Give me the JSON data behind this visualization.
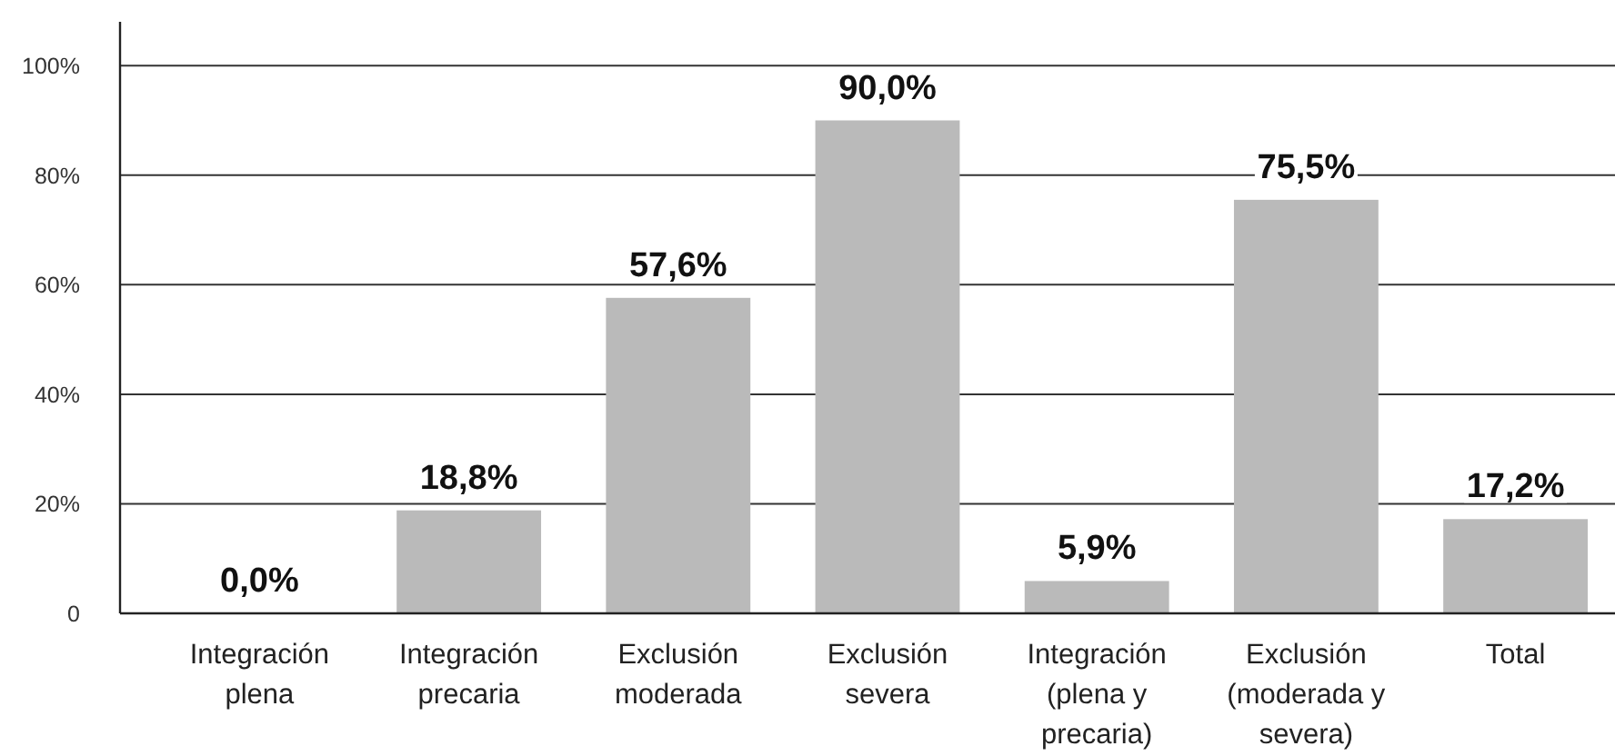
{
  "chart_data": {
    "type": "bar",
    "categories": [
      "Integración plena",
      "Integración precaria",
      "Exclusión moderada",
      "Exclusión severa",
      "Integración (plena y precaria)",
      "Exclusión (moderada y severa)",
      "Total"
    ],
    "values": [
      0,
      18.8,
      57.6,
      90.0,
      5.9,
      75.5,
      17.2
    ],
    "value_labels": [
      "0,0%",
      "18,8%",
      "57,6%",
      "90,0%",
      "5,9%",
      "75,5%",
      "17,2%"
    ],
    "color": "#bababa",
    "ylim": [
      0,
      108
    ],
    "yticks": [
      {
        "value": 0,
        "label": "0"
      },
      {
        "value": 20,
        "label": "20%"
      },
      {
        "value": 40,
        "label": "40%"
      },
      {
        "value": 60,
        "label": "60%"
      },
      {
        "value": 80,
        "label": "80%"
      },
      {
        "value": 100,
        "label": "100%"
      }
    ],
    "grid": "y"
  }
}
